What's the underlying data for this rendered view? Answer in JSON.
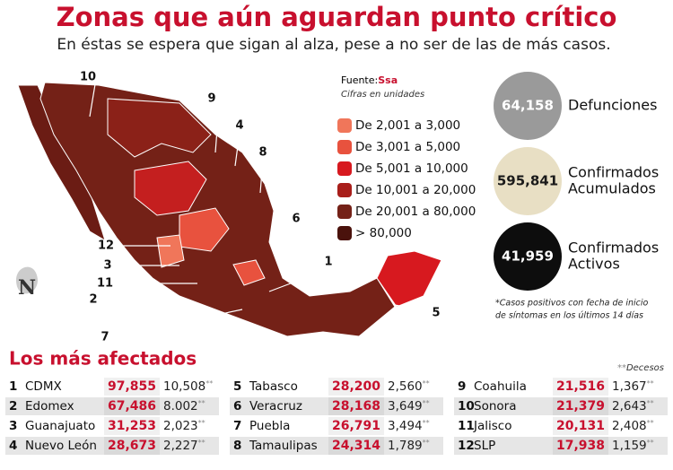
{
  "header": {
    "title": "Zonas que aún aguardan punto crítico",
    "subtitle": "En éstas se espera que sigan al alza, pese a no ser de las de más casos."
  },
  "legend": {
    "source_label": "Fuente:",
    "source": "Ssa",
    "note": "Cifras en unidades",
    "items": [
      {
        "label": "De 2,001 a 3,000",
        "color": "#f0765a"
      },
      {
        "label": "De 3,001 a 5,000",
        "color": "#e8523e"
      },
      {
        "label": "De 5,001 a 10,000",
        "color": "#d7191f"
      },
      {
        "label": "De 10,001 a 20,000",
        "color": "#a81e1a"
      },
      {
        "label": "De 20,001 a 80,000",
        "color": "#742117"
      },
      {
        "label": "> 80,000",
        "color": "#4a120c"
      }
    ]
  },
  "map_labels": [
    "10",
    "9",
    "4",
    "8",
    "6",
    "12",
    "3",
    "11",
    "2",
    "1",
    "7",
    "5"
  ],
  "stats": [
    {
      "value": "64,158",
      "label": [
        "Defunciones"
      ],
      "color": "#9a9a9a",
      "text_color": "#ffffff"
    },
    {
      "value": "595,841",
      "label": [
        "Confirmados",
        "Acumulados"
      ],
      "color": "#e8dfc4",
      "text_color": "#1a1a1a"
    },
    {
      "value": "41,959",
      "label": [
        "Confirmados",
        "Activos"
      ],
      "color": "#0d0d0d",
      "text_color": "#ffffff"
    }
  ],
  "footnote": [
    "*Casos positivos con fecha de inicio",
    "de síntomas en los últimos 14 días"
  ],
  "table": {
    "title": "Los más afectados",
    "marker": "**",
    "deaths_note": "Decesos",
    "rows": [
      [
        "1",
        "CDMX",
        "97,855",
        "10,508"
      ],
      [
        "2",
        "Edomex",
        "67,486",
        "8.002"
      ],
      [
        "3",
        "Guanajuato",
        "31,253",
        "2,023"
      ],
      [
        "4",
        "Nuevo León",
        "28,673",
        "2,227"
      ],
      [
        "5",
        "Tabasco",
        "28,200",
        "2,560"
      ],
      [
        "6",
        "Veracruz",
        "28,168",
        "3,649"
      ],
      [
        "7",
        "Puebla",
        "26,791",
        "3,494"
      ],
      [
        "8",
        "Tamaulipas",
        "24,314",
        "1,789"
      ],
      [
        "9",
        "Coahuila",
        "21,516",
        "1,367"
      ],
      [
        "10",
        "Sonora",
        "21,379",
        "2,643"
      ],
      [
        "11",
        "Jalisco",
        "20,131",
        "2,408"
      ],
      [
        "12",
        "SLP",
        "17,938",
        "1,159"
      ]
    ]
  }
}
